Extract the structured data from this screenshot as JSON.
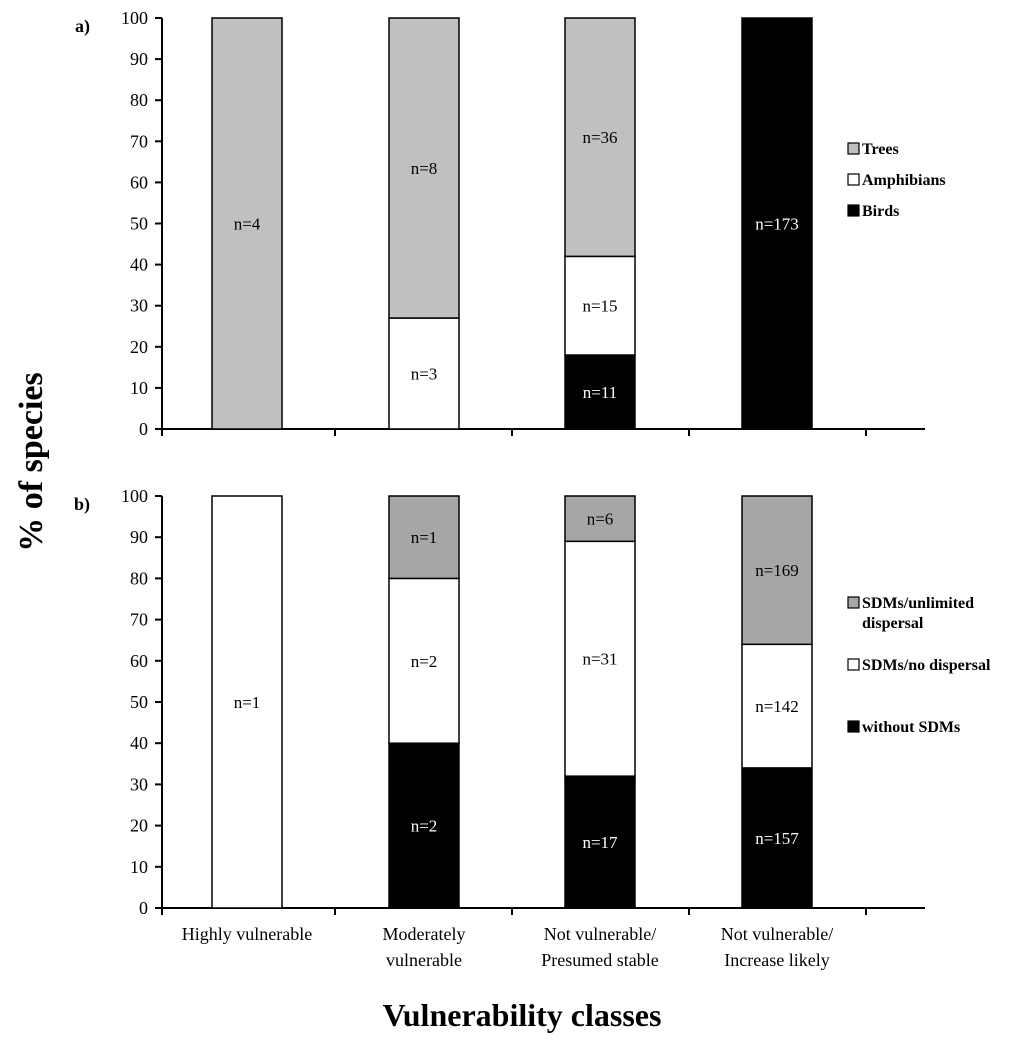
{
  "figure": {
    "ylabel": "% of species",
    "xlabel": "Vulnerability classes",
    "categories": [
      [
        "Highly vulnerable"
      ],
      [
        "Moderately",
        "vulnerable"
      ],
      [
        "Not vulnerable/",
        "Presumed stable"
      ],
      [
        "Not vulnerable/",
        "Increase likely"
      ]
    ]
  },
  "colors": {
    "black": "#000000",
    "white": "#ffffff",
    "light_gray": "#c0c0c0",
    "mid_gray": "#a6a6a6"
  },
  "chart_data": [
    {
      "type": "bar",
      "stacked": true,
      "panel_label": "a)",
      "ylim": [
        0,
        100
      ],
      "yticks": [
        0,
        10,
        20,
        30,
        40,
        50,
        60,
        70,
        80,
        90,
        100
      ],
      "categories": [
        "Highly vulnerable",
        "Moderately vulnerable",
        "Not vulnerable/ Presumed stable",
        "Not vulnerable/ Increase likely"
      ],
      "legend_position": "right",
      "series": [
        {
          "name": "Birds",
          "color": "#000000",
          "text_color": "#ffffff",
          "values": [
            0,
            0,
            18,
            100
          ],
          "labels": [
            "",
            "",
            "n=11",
            "n=173"
          ]
        },
        {
          "name": "Amphibians",
          "color": "#ffffff",
          "text_color": "#000000",
          "values": [
            0,
            27,
            24,
            0
          ],
          "labels": [
            "",
            "n=3",
            "n=15",
            ""
          ]
        },
        {
          "name": "Trees",
          "color": "#c0c0c0",
          "text_color": "#000000",
          "values": [
            100,
            73,
            58,
            0
          ],
          "labels": [
            "n=4",
            "n=8",
            "n=36",
            ""
          ]
        }
      ],
      "legend": [
        "Trees",
        "Amphibians",
        "Birds"
      ]
    },
    {
      "type": "bar",
      "stacked": true,
      "panel_label": "b)",
      "ylim": [
        0,
        100
      ],
      "yticks": [
        0,
        10,
        20,
        30,
        40,
        50,
        60,
        70,
        80,
        90,
        100
      ],
      "categories": [
        "Highly vulnerable",
        "Moderately vulnerable",
        "Not vulnerable/ Presumed stable",
        "Not vulnerable/ Increase likely"
      ],
      "legend_position": "right",
      "series": [
        {
          "name": "without SDMs",
          "color": "#000000",
          "text_color": "#ffffff",
          "values": [
            0,
            40,
            32,
            34
          ],
          "labels": [
            "",
            "n=2",
            "n=17",
            "n=157"
          ]
        },
        {
          "name": "SDMs/no dispersal",
          "color": "#ffffff",
          "text_color": "#000000",
          "values": [
            100,
            40,
            57,
            30
          ],
          "labels": [
            "n=1",
            "n=2",
            "n=31",
            "n=142"
          ]
        },
        {
          "name": "SDMs/unlimited dispersal",
          "color": "#a6a6a6",
          "text_color": "#000000",
          "values": [
            0,
            20,
            11,
            36
          ],
          "labels": [
            "",
            "n=1",
            "n=6",
            "n=169"
          ]
        }
      ],
      "legend": [
        [
          "SDMs/unlimited",
          "dispersal"
        ],
        [
          "SDMs/no dispersal"
        ],
        [
          "without SDMs"
        ]
      ]
    }
  ]
}
